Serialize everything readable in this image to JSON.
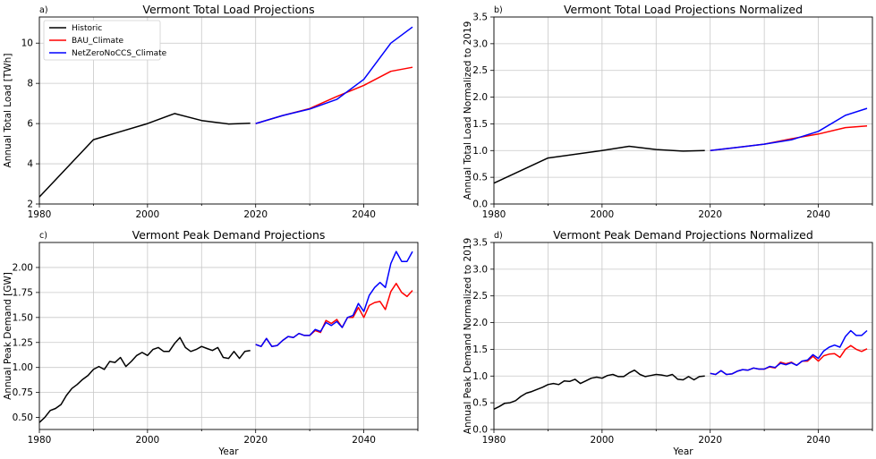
{
  "chart_data": [
    {
      "type": "line",
      "panel_label": "a)",
      "title": "Vermont Total Load Projections",
      "xlabel": "",
      "ylabel": "Annual Total Load [TWh]",
      "xlim": [
        1980,
        2050
      ],
      "ylim": [
        2,
        11.3
      ],
      "xticks": [
        1980,
        2000,
        2020,
        2040
      ],
      "yticks": [
        2,
        4,
        6,
        8,
        10
      ],
      "grid": true,
      "legend": {
        "placement": "top-left",
        "entries": [
          "Historic",
          "BAU_Climate",
          "NetZeroNoCCS_Climate"
        ]
      },
      "series": [
        {
          "name": "Historic",
          "color": "#000000",
          "x": [
            1980,
            1990,
            2000,
            2005,
            2010,
            2015,
            2019
          ],
          "y": [
            2.35,
            5.2,
            6.0,
            6.5,
            6.15,
            5.98,
            6.02
          ]
        },
        {
          "name": "BAU_Climate",
          "color": "#ff0000",
          "x": [
            2020,
            2025,
            2030,
            2035,
            2040,
            2045,
            2049
          ],
          "y": [
            6.0,
            6.4,
            6.75,
            7.35,
            7.9,
            8.6,
            8.8
          ]
        },
        {
          "name": "NetZeroNoCCS_Climate",
          "color": "#0000ff",
          "x": [
            2020,
            2025,
            2030,
            2035,
            2040,
            2045,
            2049
          ],
          "y": [
            6.0,
            6.4,
            6.72,
            7.2,
            8.2,
            10.0,
            10.8
          ]
        }
      ]
    },
    {
      "type": "line",
      "panel_label": "b)",
      "title": "Vermont Total Load Projections Normalized",
      "xlabel": "",
      "ylabel": "Annual Total Load Normalized to 2019",
      "xlim": [
        1980,
        2050
      ],
      "ylim": [
        0,
        3.5
      ],
      "xticks": [
        1980,
        2000,
        2020,
        2040
      ],
      "yticks": [
        0.0,
        0.5,
        1.0,
        1.5,
        2.0,
        2.5,
        3.0,
        3.5
      ],
      "grid": true,
      "series": [
        {
          "name": "Historic",
          "color": "#000000",
          "x": [
            1980,
            1990,
            2000,
            2005,
            2010,
            2015,
            2019
          ],
          "y": [
            0.39,
            0.86,
            1.0,
            1.08,
            1.02,
            0.99,
            1.0
          ]
        },
        {
          "name": "BAU_Climate",
          "color": "#ff0000",
          "x": [
            2020,
            2025,
            2030,
            2035,
            2040,
            2045,
            2049
          ],
          "y": [
            1.0,
            1.06,
            1.12,
            1.22,
            1.31,
            1.43,
            1.46
          ]
        },
        {
          "name": "NetZeroNoCCS_Climate",
          "color": "#0000ff",
          "x": [
            2020,
            2025,
            2030,
            2035,
            2040,
            2045,
            2049
          ],
          "y": [
            1.0,
            1.06,
            1.12,
            1.2,
            1.36,
            1.66,
            1.79
          ]
        }
      ]
    },
    {
      "type": "line",
      "panel_label": "c)",
      "title": "Vermont Peak Demand Projections",
      "xlabel": "Year",
      "ylabel": "Annual Peak Demand [GW]",
      "xlim": [
        1980,
        2050
      ],
      "ylim": [
        0.38,
        2.25
      ],
      "xticks": [
        1980,
        2000,
        2020,
        2040
      ],
      "yticks": [
        0.5,
        0.75,
        1.0,
        1.25,
        1.5,
        1.75,
        2.0
      ],
      "ytick_labels": [
        "0.50",
        "0.75",
        "1.00",
        "1.25",
        "1.50",
        "1.75",
        "2.00"
      ],
      "grid": true,
      "series": [
        {
          "name": "Historic",
          "color": "#000000",
          "x": [
            1980,
            1981,
            1982,
            1983,
            1984,
            1985,
            1986,
            1987,
            1988,
            1989,
            1990,
            1991,
            1992,
            1993,
            1994,
            1995,
            1996,
            1997,
            1998,
            1999,
            2000,
            2001,
            2002,
            2003,
            2004,
            2005,
            2006,
            2007,
            2008,
            2009,
            2010,
            2011,
            2012,
            2013,
            2014,
            2015,
            2016,
            2017,
            2018,
            2019
          ],
          "y": [
            0.45,
            0.5,
            0.57,
            0.59,
            0.63,
            0.72,
            0.79,
            0.83,
            0.88,
            0.92,
            0.98,
            1.01,
            0.98,
            1.06,
            1.05,
            1.1,
            1.01,
            1.06,
            1.12,
            1.15,
            1.12,
            1.18,
            1.2,
            1.16,
            1.16,
            1.24,
            1.3,
            1.2,
            1.16,
            1.18,
            1.21,
            1.19,
            1.17,
            1.2,
            1.1,
            1.09,
            1.16,
            1.09,
            1.16,
            1.17
          ]
        },
        {
          "name": "BAU_Climate",
          "color": "#ff0000",
          "x": [
            2020,
            2021,
            2022,
            2023,
            2024,
            2025,
            2026,
            2027,
            2028,
            2029,
            2030,
            2031,
            2032,
            2033,
            2034,
            2035,
            2036,
            2037,
            2038,
            2039,
            2040,
            2041,
            2042,
            2043,
            2044,
            2045,
            2046,
            2047,
            2048,
            2049
          ],
          "y": [
            1.23,
            1.21,
            1.29,
            1.21,
            1.22,
            1.27,
            1.31,
            1.3,
            1.34,
            1.32,
            1.32,
            1.37,
            1.35,
            1.47,
            1.44,
            1.48,
            1.4,
            1.5,
            1.5,
            1.6,
            1.5,
            1.62,
            1.65,
            1.66,
            1.58,
            1.76,
            1.84,
            1.75,
            1.71,
            1.77
          ]
        },
        {
          "name": "NetZeroNoCCS_Climate",
          "color": "#0000ff",
          "x": [
            2020,
            2021,
            2022,
            2023,
            2024,
            2025,
            2026,
            2027,
            2028,
            2029,
            2030,
            2031,
            2032,
            2033,
            2034,
            2035,
            2036,
            2037,
            2038,
            2039,
            2040,
            2041,
            2042,
            2043,
            2044,
            2045,
            2046,
            2047,
            2048,
            2049
          ],
          "y": [
            1.23,
            1.21,
            1.29,
            1.21,
            1.22,
            1.27,
            1.31,
            1.3,
            1.34,
            1.32,
            1.32,
            1.38,
            1.36,
            1.45,
            1.42,
            1.46,
            1.4,
            1.5,
            1.52,
            1.64,
            1.56,
            1.72,
            1.8,
            1.85,
            1.8,
            2.04,
            2.16,
            2.06,
            2.06,
            2.16
          ]
        }
      ]
    },
    {
      "type": "line",
      "panel_label": "d)",
      "title": "Vermont Peak Demand Projections Normalized",
      "xlabel": "Year",
      "ylabel": "Annual Peak Demand Normalized to 2019",
      "xlim": [
        1980,
        2050
      ],
      "ylim": [
        0,
        3.5
      ],
      "xticks": [
        1980,
        2000,
        2020,
        2040
      ],
      "yticks": [
        0.0,
        0.5,
        1.0,
        1.5,
        2.0,
        2.5,
        3.0,
        3.5
      ],
      "grid": true,
      "series": [
        {
          "name": "Historic",
          "color": "#000000",
          "x": [
            1980,
            1981,
            1982,
            1983,
            1984,
            1985,
            1986,
            1987,
            1988,
            1989,
            1990,
            1991,
            1992,
            1993,
            1994,
            1995,
            1996,
            1997,
            1998,
            1999,
            2000,
            2001,
            2002,
            2003,
            2004,
            2005,
            2006,
            2007,
            2008,
            2009,
            2010,
            2011,
            2012,
            2013,
            2014,
            2015,
            2016,
            2017,
            2018,
            2019
          ],
          "y": [
            0.38,
            0.43,
            0.49,
            0.5,
            0.54,
            0.62,
            0.68,
            0.71,
            0.75,
            0.79,
            0.84,
            0.86,
            0.84,
            0.91,
            0.9,
            0.94,
            0.86,
            0.91,
            0.96,
            0.98,
            0.96,
            1.01,
            1.03,
            0.99,
            0.99,
            1.06,
            1.11,
            1.03,
            0.99,
            1.01,
            1.03,
            1.02,
            1.0,
            1.03,
            0.94,
            0.93,
            0.99,
            0.93,
            0.99,
            1.0
          ]
        },
        {
          "name": "BAU_Climate",
          "color": "#ff0000",
          "x": [
            2020,
            2021,
            2022,
            2023,
            2024,
            2025,
            2026,
            2027,
            2028,
            2029,
            2030,
            2031,
            2032,
            2033,
            2034,
            2035,
            2036,
            2037,
            2038,
            2039,
            2040,
            2041,
            2042,
            2043,
            2044,
            2045,
            2046,
            2047,
            2048,
            2049
          ],
          "y": [
            1.05,
            1.03,
            1.1,
            1.03,
            1.04,
            1.09,
            1.12,
            1.11,
            1.15,
            1.13,
            1.13,
            1.17,
            1.15,
            1.26,
            1.23,
            1.26,
            1.2,
            1.28,
            1.28,
            1.37,
            1.28,
            1.38,
            1.41,
            1.42,
            1.35,
            1.5,
            1.57,
            1.5,
            1.46,
            1.51
          ]
        },
        {
          "name": "NetZeroNoCCS_Climate",
          "color": "#0000ff",
          "x": [
            2020,
            2021,
            2022,
            2023,
            2024,
            2025,
            2026,
            2027,
            2028,
            2029,
            2030,
            2031,
            2032,
            2033,
            2034,
            2035,
            2036,
            2037,
            2038,
            2039,
            2040,
            2041,
            2042,
            2043,
            2044,
            2045,
            2046,
            2047,
            2048,
            2049
          ],
          "y": [
            1.05,
            1.03,
            1.1,
            1.03,
            1.04,
            1.09,
            1.12,
            1.11,
            1.15,
            1.13,
            1.13,
            1.18,
            1.16,
            1.24,
            1.21,
            1.25,
            1.2,
            1.28,
            1.3,
            1.4,
            1.33,
            1.47,
            1.54,
            1.58,
            1.54,
            1.74,
            1.85,
            1.76,
            1.76,
            1.85
          ]
        }
      ]
    }
  ]
}
